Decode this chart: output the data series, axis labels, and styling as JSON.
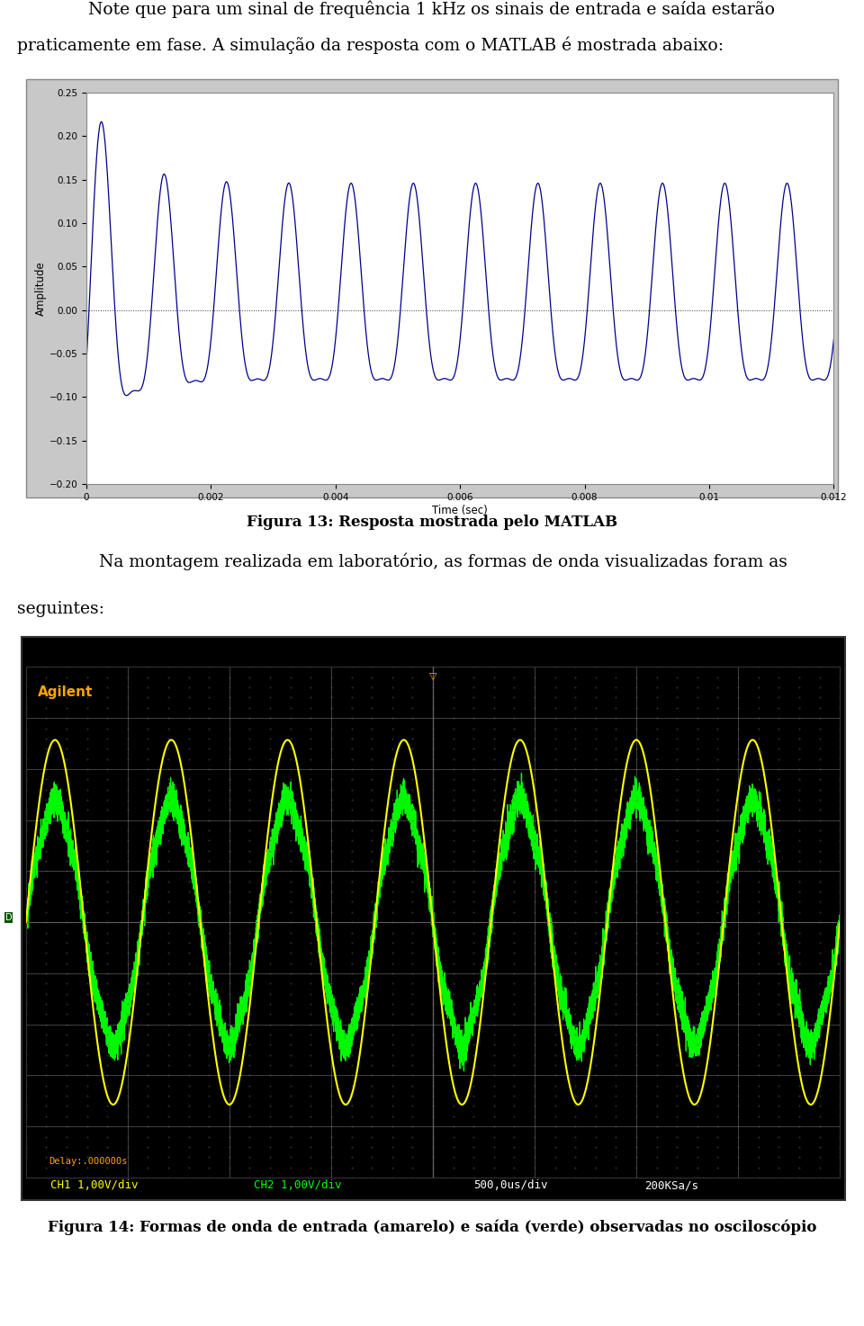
{
  "page_bg": "#ffffff",
  "text_color": "#000000",
  "para1": "Note que para um sinal de frequência 1 kHz os sinais de entrada e saída estarão",
  "para2": "praticamente em fase. A simulação da resposta com o MATLAB é mostrada abaixo:",
  "fig13_caption": "Figura 13: Resposta mostrada pelo MATLAB",
  "fig14_caption": "Figura 14: Formas de onda de entrada (amarelo) e saída (verde) observadas no osciloscópio",
  "para3": "    Na montagem realizada em laboratório, as formas de onda visualizadas foram as",
  "para4": "seguintes:",
  "matlab_line_color": "#00008b",
  "matlab_ylabel": "Amplitude",
  "matlab_xlabel": "Time (sec)",
  "matlab_xlim": [
    0,
    0.012
  ],
  "matlab_ylim": [
    -0.2,
    0.25
  ],
  "matlab_yticks": [
    -0.2,
    -0.15,
    -0.1,
    -0.05,
    0,
    0.05,
    0.1,
    0.15,
    0.2,
    0.25
  ],
  "matlab_xticks": [
    0,
    0.002,
    0.004,
    0.006,
    0.008,
    0.01,
    0.012
  ],
  "signal_freq": 1000,
  "scope_bg": "#000000",
  "scope_grid_color": "#404040",
  "scope_dot_color": "#666666",
  "scope_yellow_color": "#ffff00",
  "scope_green_color": "#00ff00",
  "scope_orange_color": "#ffa500",
  "agilent_text": "Agilent",
  "scope_ch1_label": "CH1 1,00V/div",
  "scope_ch2_label": "CH2 1,00V/div",
  "scope_time_label": "500,0us/div",
  "scope_sample_label": "200KSa/s",
  "scope_delay_label": "Delay:.000000s"
}
